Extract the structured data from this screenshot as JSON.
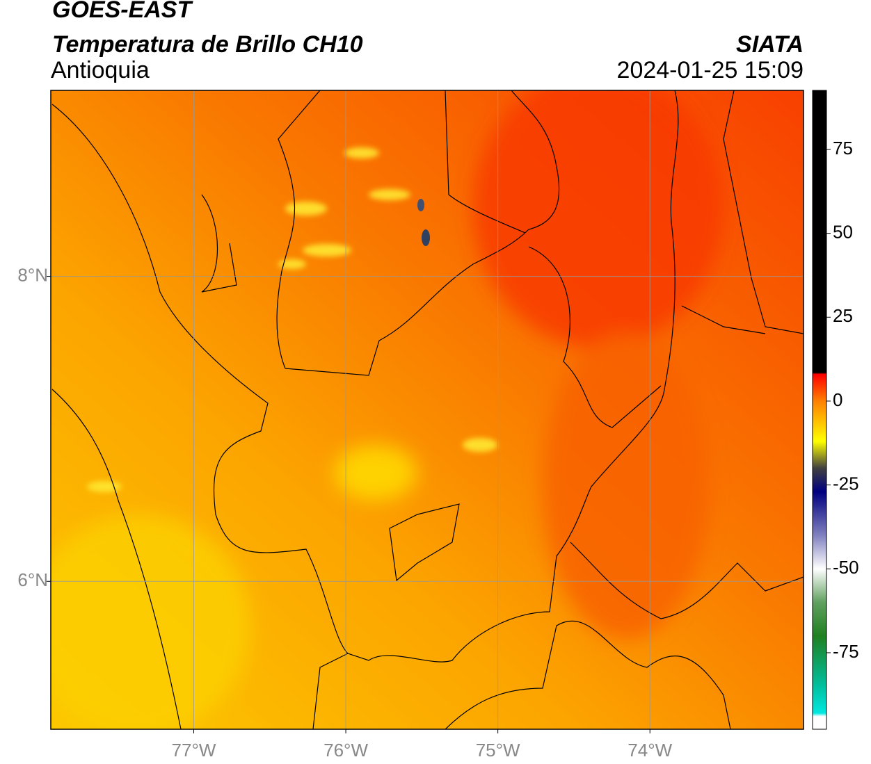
{
  "map": {
    "title": "GOES-EAST",
    "subtitle": "Temperatura de Brillo CH10",
    "region": "Antioquia",
    "source": "SIATA",
    "datetime": "2024-01-25 15:09",
    "xlim": [
      -77.94,
      -72.99
    ],
    "ylim": [
      5.03,
      9.22
    ],
    "xticks": [
      {
        "value": -77,
        "label": "77°W"
      },
      {
        "value": -76,
        "label": "76°W"
      },
      {
        "value": -75,
        "label": "75°W"
      },
      {
        "value": -74,
        "label": "74°W"
      }
    ],
    "yticks": [
      {
        "value": 6,
        "label": "6°N"
      },
      {
        "value": 8,
        "label": "8°N"
      }
    ],
    "grid": true,
    "colorbar": {
      "lim": [
        -97.8,
        92.6
      ],
      "ticks": [
        75,
        50,
        25,
        0,
        -25,
        -50,
        -75
      ],
      "colormap": [
        {
          "value": 92.6,
          "color": "#000000"
        },
        {
          "value": 8.5,
          "color": "#000000"
        },
        {
          "value": 8,
          "color": "#ff0000"
        },
        {
          "value": 0,
          "color": "#ff8000"
        },
        {
          "value": -12,
          "color": "#ffff00"
        },
        {
          "value": -20,
          "color": "#404040"
        },
        {
          "value": -27,
          "color": "#000080"
        },
        {
          "value": -40,
          "color": "#8080c0"
        },
        {
          "value": -50,
          "color": "#ffffff"
        },
        {
          "value": -60,
          "color": "#60a060"
        },
        {
          "value": -70,
          "color": "#208020"
        },
        {
          "value": -85,
          "color": "#00c0a0"
        },
        {
          "value": -93,
          "color": "#00e8e0"
        },
        {
          "value": -94,
          "color": "#ffffff"
        },
        {
          "value": -97.8,
          "color": "#ffffff"
        }
      ]
    }
  }
}
